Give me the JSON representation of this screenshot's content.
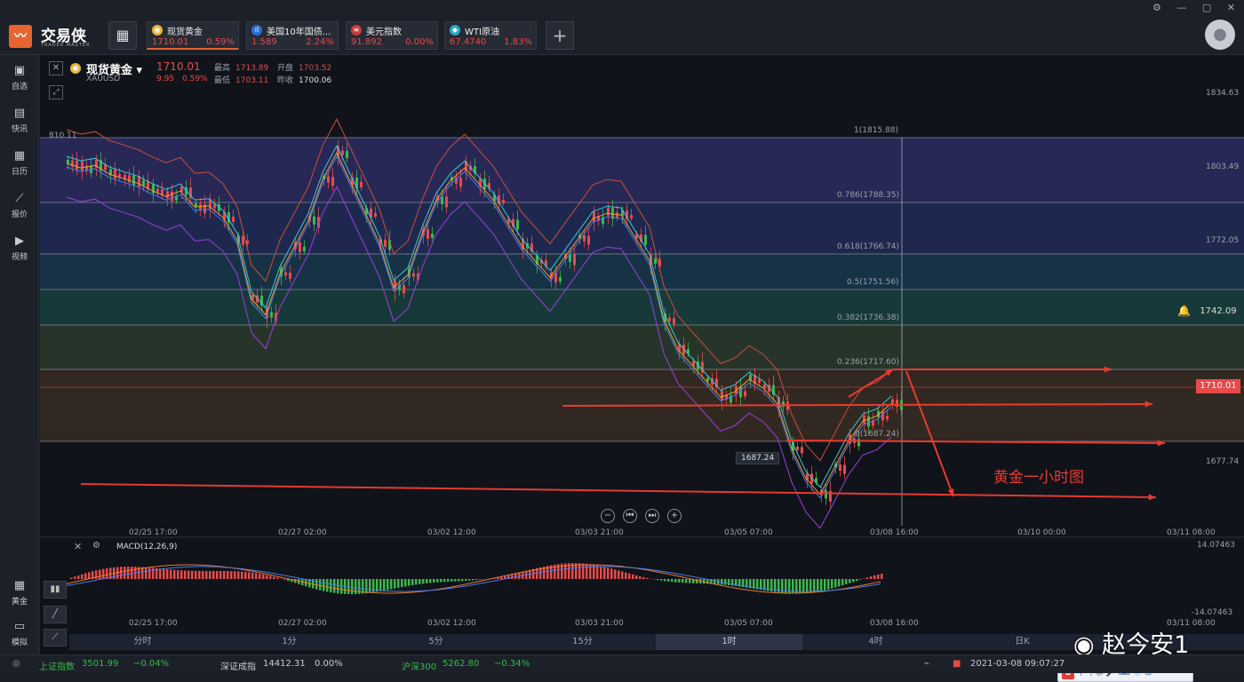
{
  "app": {
    "name": "交易侠",
    "subtitle": "TRADER MASTER",
    "window_controls": "⚙ — ▢ ✕"
  },
  "tabs": [
    {
      "name": "现货黄金",
      "price": "1710.01",
      "change": "0.59%",
      "icon": "gold-coin-icon",
      "color": "#e6b83a"
    },
    {
      "name": "美国10年国债...",
      "price": "1.589",
      "change": "2.24%",
      "icon": "bar-chart-icon",
      "color": "#2a6fd6"
    },
    {
      "name": "美元指数",
      "price": "91.892",
      "change": "0.00%",
      "icon": "us-flag-icon",
      "color": "#c83a3a"
    },
    {
      "name": "WTI原油",
      "price": "67.4740",
      "change": "1.83%",
      "icon": "oil-drop-icon",
      "color": "#2aa8c8"
    }
  ],
  "sidebar": [
    {
      "label": "自选",
      "icon": "star-bookmark-icon"
    },
    {
      "label": "快讯",
      "icon": "news-icon"
    },
    {
      "label": "日历",
      "icon": "calendar-icon"
    },
    {
      "label": "报价",
      "icon": "quote-chart-icon"
    },
    {
      "label": "视频",
      "icon": "video-icon"
    },
    {
      "label": "黄金",
      "icon": "gold-calculator-icon"
    },
    {
      "label": "模拟",
      "icon": "wallet-icon"
    }
  ],
  "header": {
    "symbol": "现货黄金",
    "code": "XAUUSD",
    "price": "1710.01",
    "change": "9.95",
    "change_pct": "0.59%",
    "high_label": "最高",
    "high": "1713.89",
    "open_label": "开盘",
    "open": "1703.52",
    "low_label": "最低",
    "low": "1703.11",
    "prev_label": "昨收",
    "prev": "1700.06"
  },
  "price_axis": [
    "1834.63",
    "1803.49",
    "1772.05",
    "1742.09",
    "1710.01",
    "1677.74"
  ],
  "fib_levels": [
    {
      "label": "1(1815.88)",
      "color": "#3a3a88"
    },
    {
      "label": "0.786(1788.35)",
      "color": "#2a3a7a"
    },
    {
      "label": "0.618(1766.74)",
      "color": "#1e4a6a"
    },
    {
      "label": "0.5(1751.56)",
      "color": "#1e5a54"
    },
    {
      "label": "0.382(1736.38)",
      "color": "#3a5038"
    },
    {
      "label": "0.236(1717.60)",
      "color": "#4e3a2a"
    },
    {
      "label": "0(1687.24)",
      "color": "#3a2a2a"
    }
  ],
  "top_left_value": "810.11",
  "low_tag": "1687.24",
  "annotation": "黄金一小时图",
  "time_axis": [
    "02/25 17:00",
    "02/27 02:00",
    "03/02 12:00",
    "03/03 21:00",
    "03/05 07:00",
    "03/08 16:00",
    "03/10 00:00",
    "03/11 08:00"
  ],
  "macd": {
    "label": "MACD(12,26,9)",
    "top": "14.07463",
    "bottom": "-14.07463"
  },
  "timeframes": [
    "分时",
    "1分",
    "5分",
    "15分",
    "1时",
    "4时",
    "日K"
  ],
  "active_timeframe": "1时",
  "nav_buttons": [
    "−",
    "⏮",
    "⏭",
    "+"
  ],
  "status": {
    "sh_label": "上证指数",
    "sh_value": "3501.99",
    "sh_change": "−0.04%",
    "sz_label": "深证成指",
    "sz_value": "14412.31",
    "sz_change": "0.00%",
    "hs_label": "沪深300",
    "hs_value": "5262.80",
    "hs_change": "−0.34%",
    "datetime": "2021-03-08 09:07:27"
  },
  "ime": "中 ·, ☺ 🎤 ⌨ 👕 ⊞",
  "watermark": "赵今安1",
  "colors": {
    "up": "#e84a4a",
    "down": "#3ab84a",
    "accent": "#e8632d",
    "annotation": "#e83a2e"
  }
}
